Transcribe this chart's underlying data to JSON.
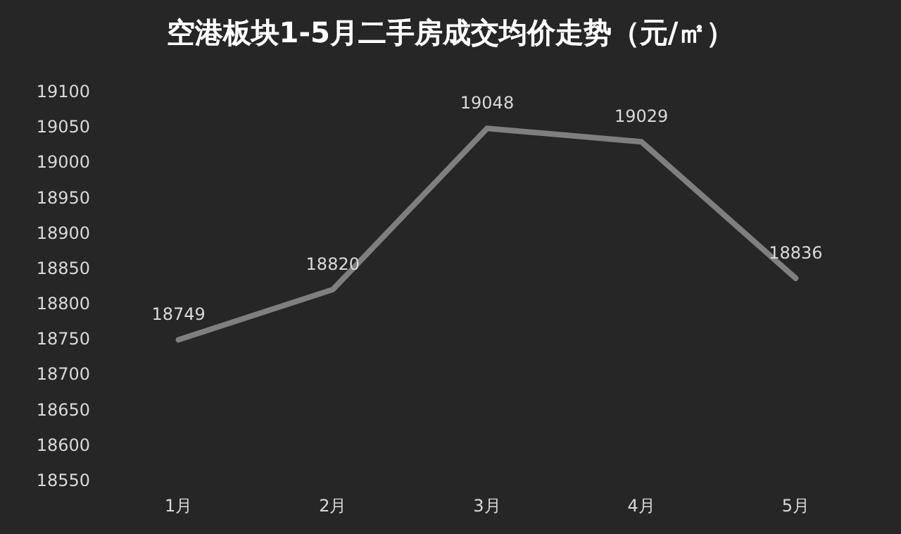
{
  "chart_data": {
    "type": "line",
    "title": "空港板块1-5月二手房成交均价走势（元/㎡）",
    "categories": [
      "1月",
      "2月",
      "3月",
      "4月",
      "5月"
    ],
    "series": [
      {
        "color": "#7f7f7f",
        "values": [
          18749,
          18820,
          19048,
          19029,
          18836
        ]
      }
    ],
    "ylim": [
      18550,
      19100
    ],
    "yticks": [
      18550,
      18600,
      18650,
      18700,
      18750,
      18800,
      18850,
      18900,
      18950,
      19000,
      19050,
      19100
    ],
    "data_labels": true,
    "grid": false,
    "marker": "none",
    "line_style": "solid"
  }
}
